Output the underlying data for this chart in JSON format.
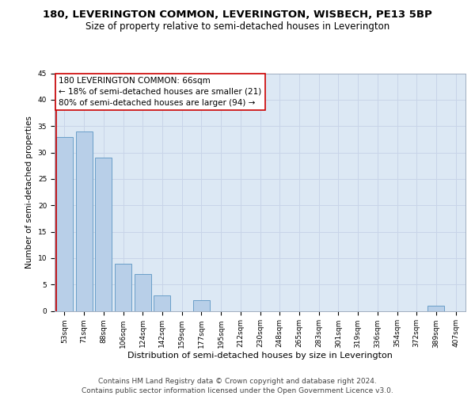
{
  "title": "180, LEVERINGTON COMMON, LEVERINGTON, WISBECH, PE13 5BP",
  "subtitle": "Size of property relative to semi-detached houses in Leverington",
  "xlabel": "Distribution of semi-detached houses by size in Leverington",
  "ylabel": "Number of semi-detached properties",
  "bin_labels": [
    "53sqm",
    "71sqm",
    "88sqm",
    "106sqm",
    "124sqm",
    "142sqm",
    "159sqm",
    "177sqm",
    "195sqm",
    "212sqm",
    "230sqm",
    "248sqm",
    "265sqm",
    "283sqm",
    "301sqm",
    "319sqm",
    "336sqm",
    "354sqm",
    "372sqm",
    "389sqm",
    "407sqm"
  ],
  "bin_values": [
    33,
    34,
    29,
    9,
    7,
    3,
    0,
    2,
    0,
    0,
    0,
    0,
    0,
    0,
    0,
    0,
    0,
    0,
    0,
    1,
    0
  ],
  "bar_color": "#b8cfe8",
  "bar_edge_color": "#6a9fc8",
  "ylim": [
    0,
    45
  ],
  "yticks": [
    0,
    5,
    10,
    15,
    20,
    25,
    30,
    35,
    40,
    45
  ],
  "property_label": "180 LEVERINGTON COMMON: 66sqm",
  "annotation_line1": "← 18% of semi-detached houses are smaller (21)",
  "annotation_line2": "80% of semi-detached houses are larger (94) →",
  "vline_color": "#cc0000",
  "annotation_box_color": "#ffffff",
  "annotation_box_edge": "#cc0000",
  "grid_color": "#c8d4e8",
  "background_color": "#dce8f4",
  "footer_text": "Contains HM Land Registry data © Crown copyright and database right 2024.\nContains public sector information licensed under the Open Government Licence v3.0.",
  "title_fontsize": 9.5,
  "subtitle_fontsize": 8.5,
  "xlabel_fontsize": 8,
  "ylabel_fontsize": 7.5,
  "tick_fontsize": 6.5,
  "annotation_fontsize": 7.5,
  "footer_fontsize": 6.5
}
